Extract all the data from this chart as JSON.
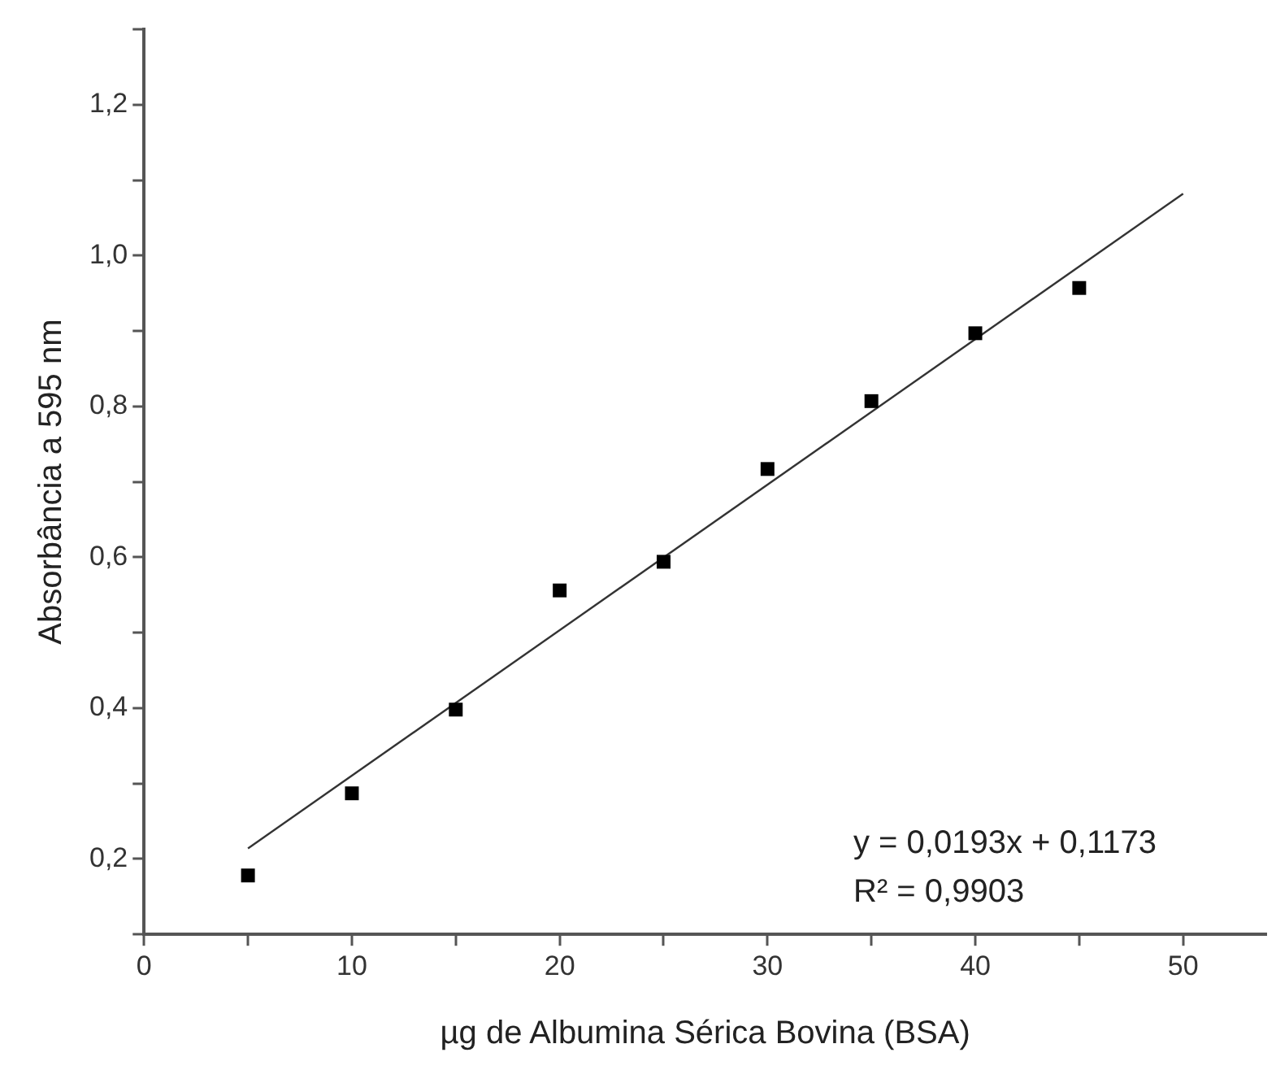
{
  "chart_data": {
    "type": "scatter",
    "xlabel": "µg de Albumina Sérica Bovina (BSA)",
    "ylabel": "Absorbância a 595 nm",
    "x": [
      5,
      10,
      15,
      20,
      25,
      30,
      35,
      40,
      45
    ],
    "series": [
      {
        "type": "scatter",
        "color": "#000000",
        "marker": "square",
        "values": [
          0.178,
          0.287,
          0.398,
          0.556,
          0.594,
          0.717,
          0.807,
          0.897,
          0.957
        ]
      },
      {
        "type": "line",
        "color": "#333333",
        "marker": "none",
        "line_style": "solid",
        "x": [
          5,
          50
        ],
        "values": [
          0.214,
          1.082
        ]
      }
    ],
    "xlim": [
      0,
      54
    ],
    "ylim": [
      0.1,
      1.3
    ],
    "xticks": [
      0,
      {
        "value": 5,
        "label": null
      },
      10,
      {
        "value": 15,
        "label": null
      },
      20,
      {
        "value": 25,
        "label": null
      },
      30,
      {
        "value": 35,
        "label": null
      },
      40,
      {
        "value": 45,
        "label": null
      },
      50
    ],
    "yticks": [
      {
        "value": 0.1,
        "label": null
      },
      {
        "value": 0.2,
        "label": "0,2"
      },
      {
        "value": 0.3,
        "label": null
      },
      {
        "value": 0.4,
        "label": "0,4"
      },
      {
        "value": 0.5,
        "label": null
      },
      {
        "value": 0.6,
        "label": "0,6"
      },
      {
        "value": 0.7,
        "label": null
      },
      {
        "value": 0.8,
        "label": "0,8"
      },
      {
        "value": 0.9,
        "label": null
      },
      {
        "value": 1.0,
        "label": "1,0"
      },
      {
        "value": 1.1,
        "label": null
      },
      {
        "value": 1.2,
        "label": "1,2"
      },
      {
        "value": 1.3,
        "label": null
      }
    ],
    "annotations": [
      "y = 0,0193x + 0,1173",
      "R² = 0,9903"
    ],
    "grid": false,
    "legend": false
  }
}
